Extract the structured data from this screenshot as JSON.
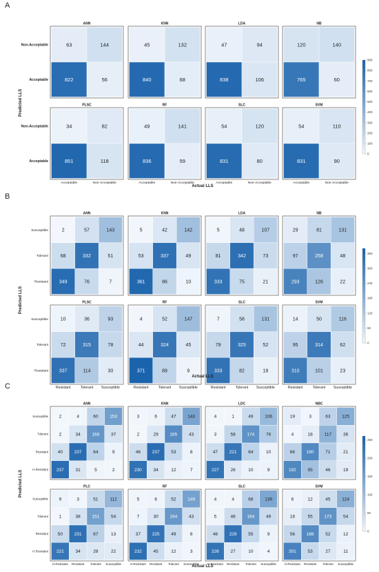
{
  "chart_data": [
    {
      "type": "heatmap",
      "panel_label": "A",
      "ylabel": "Predicted LLS",
      "xlabel": "Actual LLS",
      "x_categories": [
        "Acceptable",
        "Non-Acceptable"
      ],
      "y_categories": [
        "Non-Acceptable",
        "Acceptable"
      ],
      "colorbar": {
        "min": 0,
        "max": 900,
        "ticks": [
          0,
          100,
          200,
          300,
          400,
          500,
          600,
          700,
          800,
          900
        ]
      },
      "colormap": [
        "#f4f8fd",
        "#1660ab"
      ],
      "matrices": [
        {
          "title": "ANN",
          "values": [
            [
              63,
              144
            ],
            [
              822,
              56
            ]
          ]
        },
        {
          "title": "KNN",
          "values": [
            [
              45,
              132
            ],
            [
              840,
              68
            ]
          ]
        },
        {
          "title": "LDA",
          "values": [
            [
              47,
              94
            ],
            [
              838,
              106
            ]
          ]
        },
        {
          "title": "NB",
          "values": [
            [
              120,
              140
            ],
            [
              765,
              60
            ]
          ]
        },
        {
          "title": "PLSC",
          "values": [
            [
              34,
              82
            ],
            [
              851,
              118
            ]
          ]
        },
        {
          "title": "RF",
          "values": [
            [
              49,
              141
            ],
            [
              836,
              59
            ]
          ]
        },
        {
          "title": "SLC",
          "values": [
            [
              54,
              120
            ],
            [
              831,
              80
            ]
          ]
        },
        {
          "title": "SVM",
          "values": [
            [
              54,
              110
            ],
            [
              831,
              90
            ]
          ]
        }
      ]
    },
    {
      "type": "heatmap",
      "panel_label": "B",
      "ylabel": "Predicted LLS",
      "xlabel": "Actual LLS",
      "x_categories": [
        "Resistant",
        "Tolerant",
        "Susceptible"
      ],
      "y_categories": [
        "Susceptible",
        "Tolerant",
        "Resistant"
      ],
      "colorbar": {
        "min": 0,
        "max": 380,
        "ticks": [
          0,
          60,
          120,
          180,
          240,
          300,
          360
        ]
      },
      "colormap": [
        "#f4f8fd",
        "#1660ab"
      ],
      "matrices": [
        {
          "title": "ANN",
          "values": [
            [
              2,
              57,
              143
            ],
            [
              68,
              332,
              51
            ],
            [
              349,
              76,
              7
            ]
          ]
        },
        {
          "title": "KNN",
          "values": [
            [
              5,
              42,
              142
            ],
            [
              53,
              337,
              49
            ],
            [
              361,
              86,
              10
            ]
          ]
        },
        {
          "title": "LDA",
          "values": [
            [
              5,
              48,
              107
            ],
            [
              81,
              342,
              73
            ],
            [
              333,
              75,
              21
            ]
          ]
        },
        {
          "title": "NB",
          "values": [
            [
              29,
              81,
              131
            ],
            [
              97,
              258,
              48
            ],
            [
              293,
              126,
              22
            ]
          ]
        },
        {
          "title": "PLSC",
          "values": [
            [
              10,
              36,
              93
            ],
            [
              72,
              315,
              78
            ],
            [
              337,
              114,
              30
            ]
          ]
        },
        {
          "title": "RF",
          "values": [
            [
              4,
              52,
              147
            ],
            [
              44,
              324,
              45
            ],
            [
              371,
              89,
              9
            ]
          ]
        },
        {
          "title": "SLC",
          "values": [
            [
              7,
              58,
              131
            ],
            [
              79,
              325,
              52
            ],
            [
              333,
              82,
              18
            ]
          ]
        },
        {
          "title": "SVM",
          "values": [
            [
              14,
              50,
              116
            ],
            [
              95,
              314,
              62
            ],
            [
              310,
              101,
              23
            ]
          ]
        }
      ]
    },
    {
      "type": "heatmap",
      "panel_label": "C",
      "ylabel": "Predicted LLS",
      "xlabel": "Actual LLS",
      "x_categories": [
        "H.Resistant",
        "Resistant",
        "Tolerant",
        "Susceptible"
      ],
      "y_categories": [
        "Susceptible",
        "Tolerant",
        "Resistant",
        "H.Resistant"
      ],
      "colorbar": {
        "min": 0,
        "max": 260,
        "ticks": [
          0,
          50,
          100,
          150,
          200,
          250
        ]
      },
      "colormap": [
        "#f4f8fd",
        "#1660ab"
      ],
      "matrices": [
        {
          "title": "ANN",
          "values": [
            [
              2,
              4,
              60,
              153
            ],
            [
              2,
              34,
              168,
              37
            ],
            [
              40,
              237,
              64,
              9
            ],
            [
              237,
              31,
              5,
              2
            ]
          ]
        },
        {
          "title": "KNN",
          "values": [
            [
              3,
              6,
              47,
              143
            ],
            [
              2,
              29,
              185,
              43
            ],
            [
              46,
              237,
              53,
              8
            ],
            [
              230,
              34,
              12,
              7
            ]
          ]
        },
        {
          "title": "LDC",
          "values": [
            [
              4,
              1,
              49,
              106
            ],
            [
              3,
              58,
              174,
              76
            ],
            [
              47,
              221,
              64,
              10
            ],
            [
              227,
              26,
              10,
              9
            ]
          ]
        },
        {
          "title": "NBC",
          "values": [
            [
              19,
              3,
              63,
              125
            ],
            [
              4,
              18,
              117,
              36
            ],
            [
              66,
              190,
              71,
              21
            ],
            [
              192,
              95,
              46,
              19
            ]
          ]
        },
        {
          "title": "PLC",
          "values": [
            [
              9,
              3,
              51,
              112
            ],
            [
              1,
              38,
              151,
              54
            ],
            [
              50,
              231,
              67,
              13
            ],
            [
              221,
              34,
              28,
              22
            ]
          ]
        },
        {
          "title": "RF",
          "values": [
            [
              5,
              6,
              52,
              149
            ],
            [
              7,
              30,
              164,
              43
            ],
            [
              37,
              225,
              49,
              6
            ],
            [
              232,
              45,
              12,
              3
            ]
          ]
        },
        {
          "title": "SLC",
          "values": [
            [
              4,
              4,
              68,
              139
            ],
            [
              5,
              46,
              164,
              49
            ],
            [
              46,
              229,
              55,
              9
            ],
            [
              226,
              27,
              10,
              4
            ]
          ]
        },
        {
          "title": "SVM",
          "values": [
            [
              6,
              12,
              45,
              124
            ],
            [
              18,
              55,
              173,
              54
            ],
            [
              56,
              186,
              52,
              12
            ],
            [
              201,
              53,
              27,
              11
            ]
          ]
        }
      ]
    }
  ]
}
